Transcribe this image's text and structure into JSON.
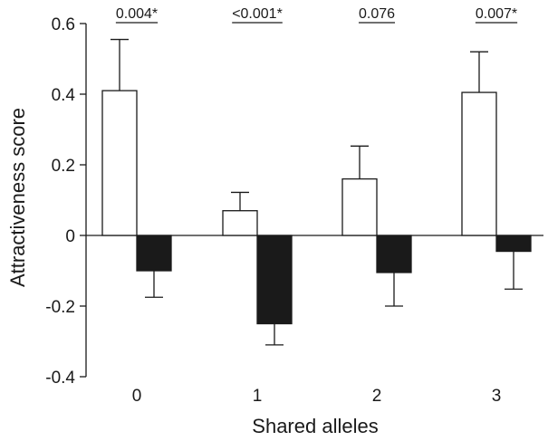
{
  "chart_data": {
    "type": "bar",
    "title": "",
    "xlabel": "Shared alleles",
    "ylabel": "Attractiveness score",
    "ylim": [
      -0.4,
      0.6
    ],
    "yticks": [
      -0.4,
      -0.2,
      0,
      0.2,
      0.4,
      0.6
    ],
    "ytick_labels": [
      "-0.4",
      "-0.2",
      "0",
      "0.2",
      "0.4",
      "0.6"
    ],
    "categories": [
      "0",
      "1",
      "2",
      "3"
    ],
    "series": [
      {
        "fill": "#ffffff",
        "values": [
          0.41,
          0.07,
          0.16,
          0.405
        ],
        "error": [
          0.145,
          0.052,
          0.093,
          0.115
        ]
      },
      {
        "fill": "#1a1a1a",
        "values": [
          -0.1,
          -0.25,
          -0.105,
          -0.045
        ],
        "error": [
          0.075,
          0.06,
          0.095,
          0.107
        ]
      }
    ],
    "annotations": [
      "0.004*",
      "<0.001*",
      "0.076",
      "0.007*"
    ],
    "grid": false,
    "legend": "none"
  }
}
